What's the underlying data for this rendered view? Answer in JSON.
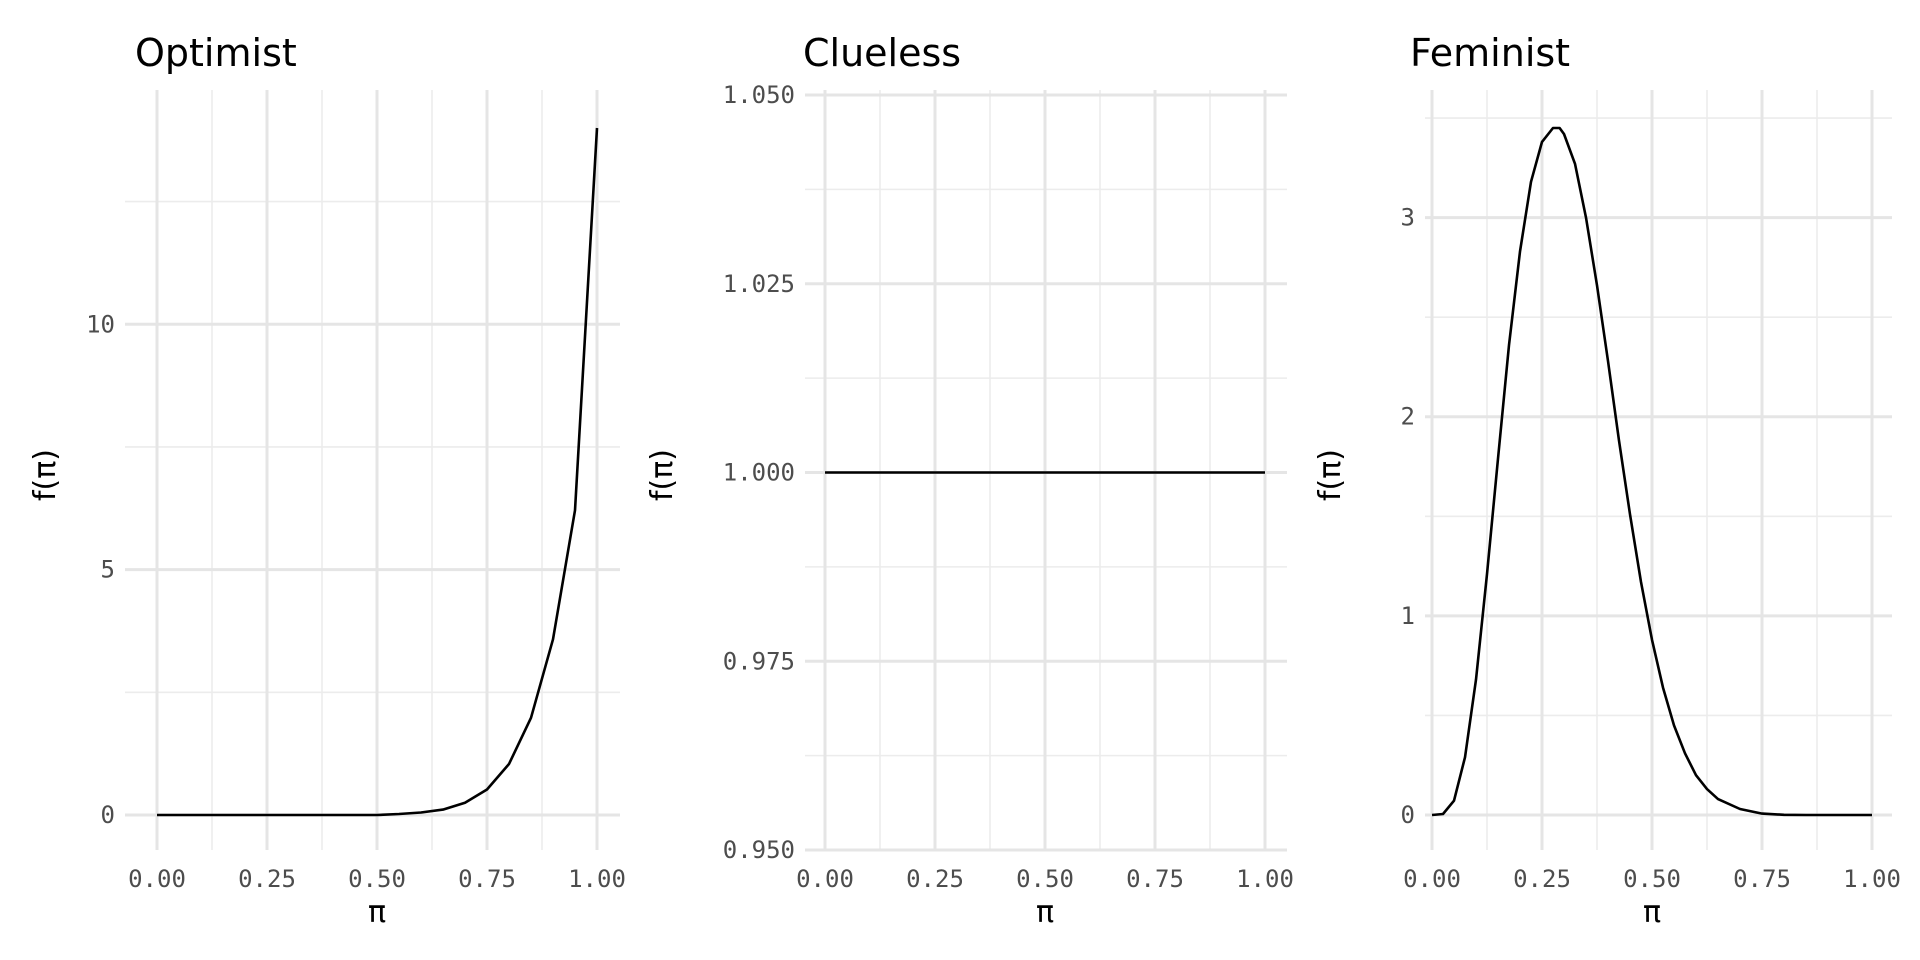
{
  "chart_data": [
    {
      "type": "line",
      "title": "Optimist",
      "xlabel": "π",
      "ylabel": "f(π)",
      "xlim": [
        0,
        1
      ],
      "ylim": [
        0,
        14
      ],
      "x_ticks": [
        "0.00",
        "0.25",
        "0.50",
        "0.75",
        "1.00"
      ],
      "y_ticks": [
        {
          "value": 0,
          "label": "0"
        },
        {
          "value": 5,
          "label": "5"
        },
        {
          "value": 10,
          "label": "10"
        }
      ],
      "grid": true,
      "series": [
        {
          "x": [
            0,
            0.1,
            0.2,
            0.3,
            0.4,
            0.5,
            0.55,
            0.6,
            0.65,
            0.7,
            0.75,
            0.8,
            0.85,
            0.9,
            0.95,
            1.0
          ],
          "y": [
            0,
            0,
            0,
            0,
            0,
            0.0,
            0.02,
            0.05,
            0.11,
            0.25,
            0.52,
            1.04,
            1.98,
            3.58,
            6.21,
            14.0
          ]
        }
      ]
    },
    {
      "type": "line",
      "title": "Clueless",
      "xlabel": "π",
      "ylabel": "f(π)",
      "xlim": [
        0,
        1
      ],
      "ylim": [
        0.95,
        1.05
      ],
      "x_ticks": [
        "0.00",
        "0.25",
        "0.50",
        "0.75",
        "1.00"
      ],
      "y_ticks": [
        {
          "value": 0.95,
          "label": "0.950"
        },
        {
          "value": 0.975,
          "label": "0.975"
        },
        {
          "value": 1.0,
          "label": "1.000"
        },
        {
          "value": 1.025,
          "label": "1.025"
        },
        {
          "value": 1.05,
          "label": "1.050"
        }
      ],
      "grid": true,
      "series": [
        {
          "x": [
            0,
            0.25,
            0.5,
            0.75,
            1.0
          ],
          "y": [
            1,
            1,
            1,
            1,
            1
          ]
        }
      ]
    },
    {
      "type": "line",
      "title": "Feminist",
      "xlabel": "π",
      "ylabel": "f(π)",
      "xlim": [
        0,
        1
      ],
      "ylim": [
        0,
        3.45
      ],
      "x_ticks": [
        "0.00",
        "0.25",
        "0.50",
        "0.75",
        "1.00"
      ],
      "y_ticks": [
        {
          "value": 0,
          "label": "0"
        },
        {
          "value": 1,
          "label": "1"
        },
        {
          "value": 2,
          "label": "2"
        },
        {
          "value": 3,
          "label": "3"
        }
      ],
      "grid": true,
      "series": [
        {
          "x": [
            0,
            0.025,
            0.05,
            0.075,
            0.1,
            0.125,
            0.15,
            0.175,
            0.2,
            0.225,
            0.25,
            0.275,
            0.29,
            0.3,
            0.325,
            0.35,
            0.375,
            0.4,
            0.425,
            0.45,
            0.475,
            0.5,
            0.525,
            0.55,
            0.575,
            0.6,
            0.625,
            0.65,
            0.7,
            0.75,
            0.8,
            0.85,
            0.9,
            1.0
          ],
          "y": [
            0,
            0.005,
            0.072,
            0.29,
            0.68,
            1.21,
            1.79,
            2.36,
            2.83,
            3.18,
            3.38,
            3.45,
            3.45,
            3.42,
            3.27,
            3.0,
            2.66,
            2.28,
            1.88,
            1.51,
            1.17,
            0.88,
            0.64,
            0.45,
            0.31,
            0.2,
            0.13,
            0.08,
            0.03,
            0.007,
            0.001,
            0,
            0,
            0
          ]
        }
      ]
    }
  ]
}
